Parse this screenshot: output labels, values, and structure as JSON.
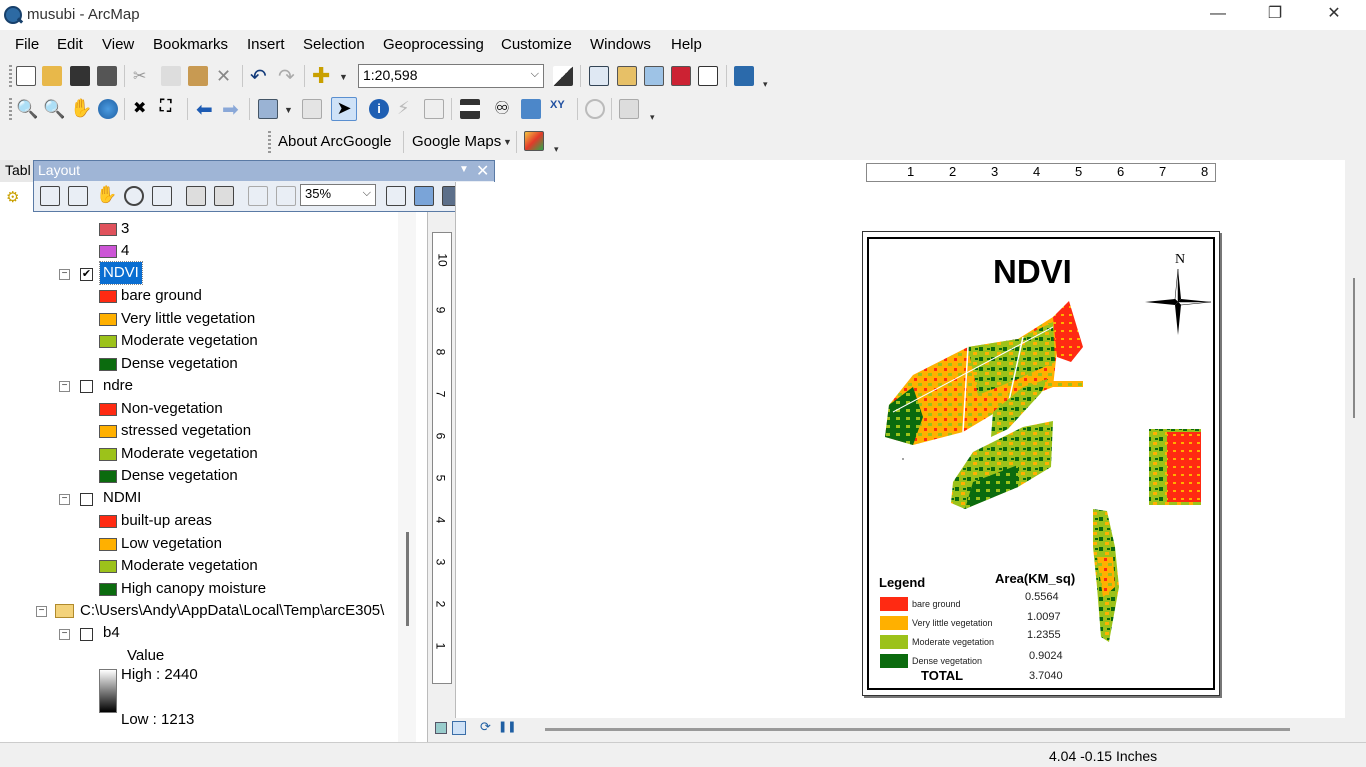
{
  "window": {
    "title": "musubi - ArcMap",
    "minimize": "—",
    "maximize": "❐",
    "close": "✕"
  },
  "menu": [
    "File",
    "Edit",
    "View",
    "Bookmarks",
    "Insert",
    "Selection",
    "Geoprocessing",
    "Customize",
    "Windows",
    "Help"
  ],
  "standard_toolbar": {
    "scale": "1:20,598"
  },
  "arcgoogle_toolbar": {
    "about": "About ArcGoogle",
    "maps": "Google Maps"
  },
  "toc": {
    "tab_label": "Tabl",
    "items": {
      "class_3": "3",
      "class_4": "4",
      "ndvi_layer": "NDVI",
      "ndvi_classes": [
        "bare ground",
        "Very little vegetation",
        "Moderate vegetation",
        "Dense vegetation"
      ],
      "ndre_layer": "ndre",
      "ndre_classes": [
        "Non-vegetation",
        "stressed vegetation",
        "Moderate vegetation",
        "Dense vegetation"
      ],
      "ndmi_layer": "NDMI",
      "ndmi_classes": [
        "built-up areas",
        "Low vegetation",
        "Moderate vegetation",
        "High canopy moisture"
      ],
      "folder": "C:\\Users\\Andy\\AppData\\Local\\Temp\\arcE305\\",
      "b4_layer": "b4",
      "value_label": "Value",
      "high": "High : 2440",
      "low": "Low : 1213"
    },
    "colors": {
      "class_3": "#e0525c",
      "class_4": "#cc55d6",
      "red": "#ff2a12",
      "orange": "#ffb000",
      "light_green": "#9cc21a",
      "dark_green": "#0b6b0e"
    }
  },
  "layout_toolbar": {
    "title": "Layout",
    "zoom": "35%"
  },
  "map_layout": {
    "title": "NDVI",
    "north": "N",
    "legend_title": "Legend",
    "area_title": "Area(KM_sq)",
    "legend": [
      {
        "label": "bare ground",
        "value": "0.5564"
      },
      {
        "label": "Very little vegetation",
        "value": "1.0097"
      },
      {
        "label": "Moderate vegetation",
        "value": "1.2355"
      },
      {
        "label": "Dense vegetation",
        "value": "0.9024"
      }
    ],
    "total_label": "TOTAL",
    "total_value": "3.7040"
  },
  "rulers": {
    "top": [
      "1",
      "2",
      "3",
      "4",
      "5",
      "6",
      "7",
      "8"
    ],
    "left": [
      "10",
      "9",
      "8",
      "7",
      "6",
      "5",
      "4",
      "3",
      "2",
      "1"
    ]
  },
  "status": {
    "coords": "4.04  -0.15 Inches"
  }
}
